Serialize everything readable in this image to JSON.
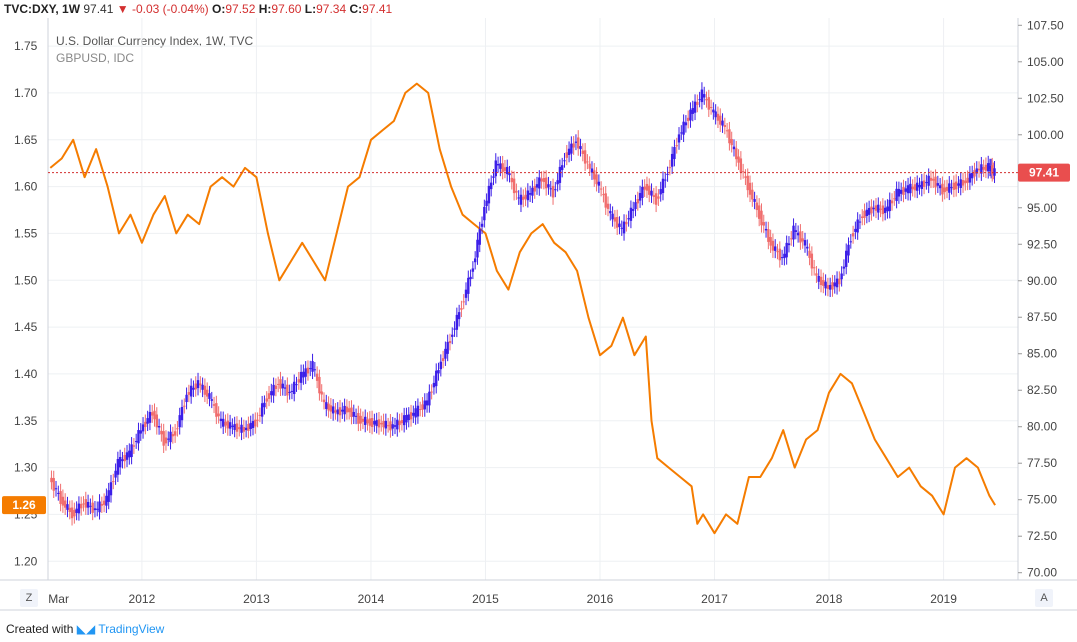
{
  "header": {
    "symbol": "TVC:DXY",
    "interval": "1W",
    "last": "97.41",
    "change": "-0.03 (-0.04%)",
    "o_label": "O:",
    "o_value": "97.52",
    "h_label": "H:",
    "h_value": "97.60",
    "l_label": "L:",
    "l_value": "97.34",
    "c_label": "C:",
    "c_value": "97.41"
  },
  "legend": {
    "line1": "U.S. Dollar Currency Index, 1W, TVC",
    "line2": "GBPUSD, IDC"
  },
  "footer": {
    "prefix": "Created with",
    "brand": "TradingView"
  },
  "corners": {
    "left": "Z",
    "right": "A"
  },
  "colors": {
    "dxy_up": "#3b1ee8",
    "dxy_down": "#f06d6d",
    "gbp": "#f57c00",
    "ref_line": "#d32f2f"
  },
  "chart_data": {
    "type": "line",
    "title": "U.S. Dollar Currency Index, 1W, TVC",
    "x_ticks": [
      "Mar",
      "2012",
      "2013",
      "2014",
      "2015",
      "2016",
      "2017",
      "2018",
      "2019"
    ],
    "x_tick_years": [
      2011.2,
      2012.0,
      2013.0,
      2014.0,
      2015.0,
      2016.0,
      2017.0,
      2018.0,
      2019.0
    ],
    "xlim": [
      2011.18,
      2019.65
    ],
    "left_axis": {
      "series": "GBPUSD",
      "ylim": [
        1.18,
        1.78
      ],
      "ticks": [
        "1.20",
        "1.25",
        "1.30",
        "1.35",
        "1.40",
        "1.45",
        "1.50",
        "1.55",
        "1.60",
        "1.65",
        "1.70",
        "1.75"
      ]
    },
    "right_axis": {
      "series": "DXY",
      "ylim": [
        69.5,
        108.0
      ],
      "ticks": [
        "72.50",
        "75.00",
        "77.50",
        "80.00",
        "82.50",
        "85.00",
        "87.50",
        "90.00",
        "92.50",
        "95.00",
        "97.50",
        "100.00",
        "102.50",
        "105.00",
        "107.50"
      ],
      "extra_tick": "70.00"
    },
    "current": {
      "gbp_label": "1.26",
      "gbp_value": 1.26,
      "dxy_label": "97.41",
      "dxy_value": 97.41
    },
    "series": [
      {
        "name": "GBPUSD",
        "axis": "left",
        "style": "line",
        "x": [
          2011.2,
          2011.3,
          2011.4,
          2011.5,
          2011.6,
          2011.7,
          2011.8,
          2011.9,
          2012.0,
          2012.1,
          2012.2,
          2012.3,
          2012.4,
          2012.5,
          2012.6,
          2012.7,
          2012.8,
          2012.9,
          2013.0,
          2013.1,
          2013.2,
          2013.3,
          2013.4,
          2013.5,
          2013.6,
          2013.7,
          2013.8,
          2013.9,
          2014.0,
          2014.1,
          2014.2,
          2014.3,
          2014.4,
          2014.5,
          2014.6,
          2014.7,
          2014.8,
          2014.9,
          2015.0,
          2015.1,
          2015.2,
          2015.3,
          2015.4,
          2015.5,
          2015.6,
          2015.7,
          2015.8,
          2015.9,
          2016.0,
          2016.1,
          2016.2,
          2016.3,
          2016.4,
          2016.45,
          2016.5,
          2016.6,
          2016.7,
          2016.8,
          2016.85,
          2016.9,
          2017.0,
          2017.1,
          2017.2,
          2017.3,
          2017.4,
          2017.5,
          2017.6,
          2017.7,
          2017.8,
          2017.9,
          2018.0,
          2018.1,
          2018.2,
          2018.3,
          2018.4,
          2018.5,
          2018.6,
          2018.7,
          2018.8,
          2018.9,
          2019.0,
          2019.1,
          2019.2,
          2019.3,
          2019.4,
          2019.45
        ],
        "values": [
          1.62,
          1.63,
          1.65,
          1.61,
          1.64,
          1.6,
          1.55,
          1.57,
          1.54,
          1.57,
          1.59,
          1.55,
          1.57,
          1.56,
          1.6,
          1.61,
          1.6,
          1.62,
          1.61,
          1.55,
          1.5,
          1.52,
          1.54,
          1.52,
          1.5,
          1.55,
          1.6,
          1.61,
          1.65,
          1.66,
          1.67,
          1.7,
          1.71,
          1.7,
          1.64,
          1.6,
          1.57,
          1.56,
          1.55,
          1.51,
          1.49,
          1.53,
          1.55,
          1.56,
          1.54,
          1.53,
          1.51,
          1.46,
          1.42,
          1.43,
          1.46,
          1.42,
          1.44,
          1.35,
          1.31,
          1.3,
          1.29,
          1.28,
          1.24,
          1.25,
          1.23,
          1.25,
          1.24,
          1.29,
          1.29,
          1.31,
          1.34,
          1.3,
          1.33,
          1.34,
          1.38,
          1.4,
          1.39,
          1.36,
          1.33,
          1.31,
          1.29,
          1.3,
          1.28,
          1.27,
          1.25,
          1.3,
          1.31,
          1.3,
          1.27,
          1.26
        ]
      },
      {
        "name": "DXY",
        "axis": "right",
        "style": "candles",
        "x": [
          2011.2,
          2011.3,
          2011.4,
          2011.5,
          2011.6,
          2011.7,
          2011.8,
          2011.9,
          2012.0,
          2012.1,
          2012.2,
          2012.3,
          2012.4,
          2012.5,
          2012.6,
          2012.7,
          2012.8,
          2012.9,
          2013.0,
          2013.1,
          2013.2,
          2013.3,
          2013.4,
          2013.5,
          2013.6,
          2013.7,
          2013.8,
          2013.9,
          2014.0,
          2014.1,
          2014.2,
          2014.3,
          2014.4,
          2014.5,
          2014.6,
          2014.7,
          2014.8,
          2014.9,
          2015.0,
          2015.1,
          2015.2,
          2015.3,
          2015.4,
          2015.5,
          2015.6,
          2015.7,
          2015.8,
          2015.9,
          2016.0,
          2016.1,
          2016.2,
          2016.3,
          2016.4,
          2016.5,
          2016.6,
          2016.7,
          2016.8,
          2016.9,
          2017.0,
          2017.1,
          2017.2,
          2017.3,
          2017.4,
          2017.5,
          2017.6,
          2017.7,
          2017.8,
          2017.9,
          2018.0,
          2018.1,
          2018.2,
          2018.3,
          2018.4,
          2018.5,
          2018.6,
          2018.7,
          2018.8,
          2018.9,
          2019.0,
          2019.1,
          2019.2,
          2019.3,
          2019.4,
          2019.45
        ],
        "values": [
          76.5,
          75.0,
          74.0,
          74.8,
          74.3,
          75.0,
          77.5,
          78.2,
          79.8,
          81.0,
          79.0,
          79.6,
          82.2,
          83.0,
          82.0,
          80.3,
          80.0,
          79.8,
          80.3,
          82.0,
          83.0,
          82.3,
          83.5,
          84.2,
          81.5,
          81.0,
          81.2,
          80.5,
          80.3,
          80.2,
          80.0,
          80.5,
          81.0,
          81.7,
          84.0,
          86.0,
          88.3,
          91.0,
          95.0,
          98.0,
          97.5,
          95.5,
          96.0,
          97.0,
          96.0,
          98.5,
          99.6,
          98.0,
          96.5,
          94.5,
          93.5,
          95.0,
          96.5,
          95.5,
          97.5,
          100.0,
          101.5,
          102.8,
          101.5,
          100.5,
          98.5,
          96.5,
          94.5,
          92.5,
          91.5,
          93.5,
          92.5,
          90.2,
          89.5,
          90.0,
          93.0,
          94.5,
          95.0,
          94.8,
          96.0,
          96.3,
          96.5,
          97.0,
          96.2,
          96.5,
          96.8,
          97.6,
          97.8,
          97.41
        ]
      }
    ]
  }
}
